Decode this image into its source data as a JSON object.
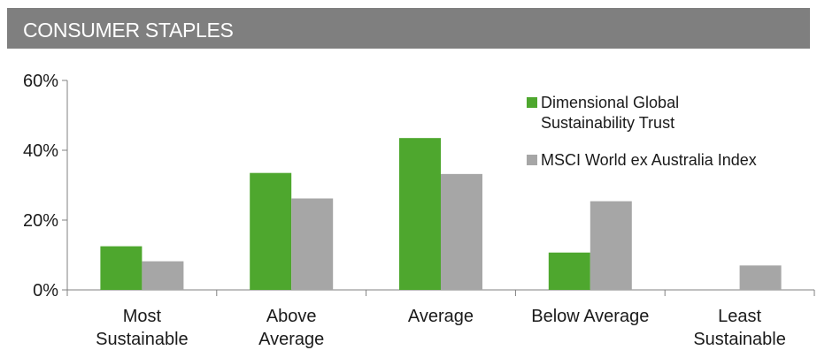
{
  "header": {
    "title": "CONSUMER STAPLES"
  },
  "chart_data": {
    "type": "bar",
    "categories": [
      [
        "Most",
        "Sustainable"
      ],
      [
        "Above",
        "Average"
      ],
      [
        "Average"
      ],
      [
        "Below Average"
      ],
      [
        "Least",
        "Sustainable"
      ]
    ],
    "series": [
      {
        "name": "Dimensional Global Sustainability Trust",
        "legend_lines": [
          "Dimensional Global",
          "Sustainability Trust"
        ],
        "color": "#4ea72e",
        "values": [
          12.5,
          33.5,
          43.5,
          10.7,
          0
        ]
      },
      {
        "name": "MSCI World ex Australia Index",
        "legend_lines": [
          "MSCI World ex Australia Index"
        ],
        "color": "#a6a6a6",
        "values": [
          8.2,
          26.2,
          33.2,
          25.4,
          7.0
        ]
      }
    ],
    "y_ticks": [
      "0%",
      "20%",
      "40%",
      "60%"
    ],
    "ylim": [
      0,
      60
    ],
    "legend_position": "top-right",
    "grid": false
  }
}
